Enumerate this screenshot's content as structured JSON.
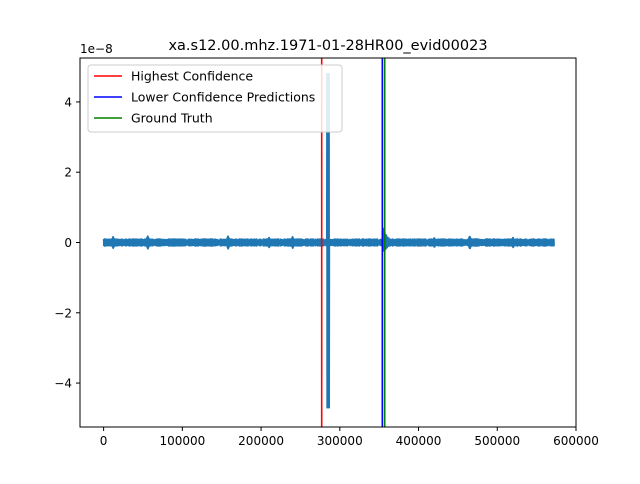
{
  "chart_data": {
    "type": "line",
    "title": "xa.s12.00.mhz.1971-01-28HR00_evid00023",
    "xlabel": "",
    "ylabel": "",
    "y_offset_label": "1e−8",
    "xlim": [
      -30000,
      600000
    ],
    "ylim": [
      -5.25,
      5.25
    ],
    "x_ticks": [
      0,
      100000,
      200000,
      300000,
      400000,
      500000,
      600000
    ],
    "x_tick_labels": [
      "0",
      "100000",
      "200000",
      "300000",
      "400000",
      "500000",
      "600000"
    ],
    "y_ticks": [
      -4,
      -2,
      0,
      2,
      4
    ],
    "y_tick_labels": [
      "−4",
      "−2",
      "0",
      "2",
      "4"
    ],
    "grid": false,
    "legend_position": "upper-left",
    "series": [
      {
        "name": "",
        "color": "#1f77b4",
        "kind": "waveform",
        "x_start": 0,
        "x_end": 572000,
        "baseline_amplitude": 0.12,
        "bursts": [
          {
            "x": 12000,
            "amplitude": 0.18
          },
          {
            "x": 56000,
            "amplitude": 0.2
          },
          {
            "x": 158000,
            "amplitude": 0.2
          },
          {
            "x": 210000,
            "amplitude": 0.16
          },
          {
            "x": 240000,
            "amplitude": 0.18
          },
          {
            "x": 285000,
            "amplitude_max": 4.82,
            "amplitude_min": -4.72
          },
          {
            "x": 355000,
            "amplitude_max": 0.45,
            "amplitude_min": -0.35,
            "decay": 25000
          },
          {
            "x": 420000,
            "amplitude": 0.15
          },
          {
            "x": 465000,
            "amplitude": 0.2
          },
          {
            "x": 520000,
            "amplitude": 0.16
          }
        ]
      }
    ],
    "vertical_lines": [
      {
        "name": "Highest Confidence",
        "x": 277000,
        "color": "#ff0000"
      },
      {
        "name": "Lower Confidence Predictions",
        "x": 354000,
        "color": "#0000ff"
      },
      {
        "name": "Ground Truth",
        "x": 357000,
        "color": "#008000"
      }
    ]
  }
}
